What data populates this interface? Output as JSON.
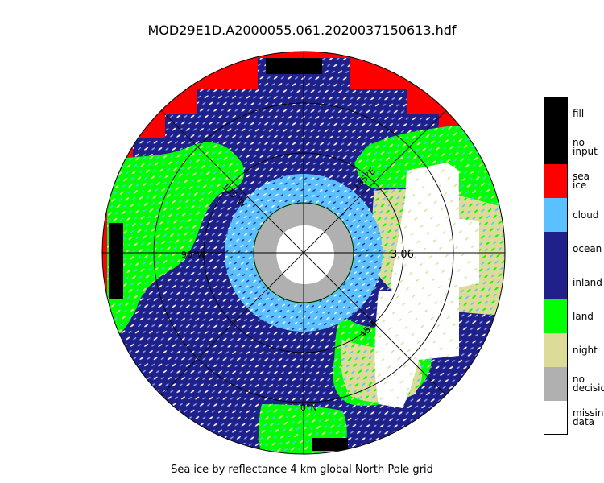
{
  "title": "MOD29E1D.A2000055.061.2020037150613.hdf",
  "subtitle": "Sea ice by reflectance 4 km global North Pole grid",
  "map": {
    "projection": "north polar stereographic",
    "center_value": "3.06",
    "meridian_labels": [
      "0°N",
      "45°E",
      "135°E",
      "45°W",
      "135°W",
      "90°W",
      "180°"
    ],
    "colors": {
      "fill": "#000000",
      "no_input": "#000000",
      "sea_ice": "#ff0000",
      "cloud": "#5bc0ff",
      "ocean": "#20208a",
      "inland": "#20208a",
      "land": "#00ff00",
      "night": "#dcdc98",
      "no_decision": "#b0b0b0",
      "missing_data": "#ffffff"
    }
  },
  "legend": {
    "items": [
      {
        "label": "fill",
        "color": "#000000"
      },
      {
        "label": "no\ninput",
        "color": "#000000"
      },
      {
        "label": "sea\nice",
        "color": "#ff0000"
      },
      {
        "label": "cloud",
        "color": "#5bc0ff"
      },
      {
        "label": "ocean",
        "color": "#20208a"
      },
      {
        "label": "inland",
        "color": "#20208a"
      },
      {
        "label": "land",
        "color": "#00ff00"
      },
      {
        "label": "night",
        "color": "#dcdc98"
      },
      {
        "label": "no\ndecision",
        "color": "#b0b0b0"
      },
      {
        "label": "missing\ndata",
        "color": "#ffffff"
      }
    ]
  }
}
